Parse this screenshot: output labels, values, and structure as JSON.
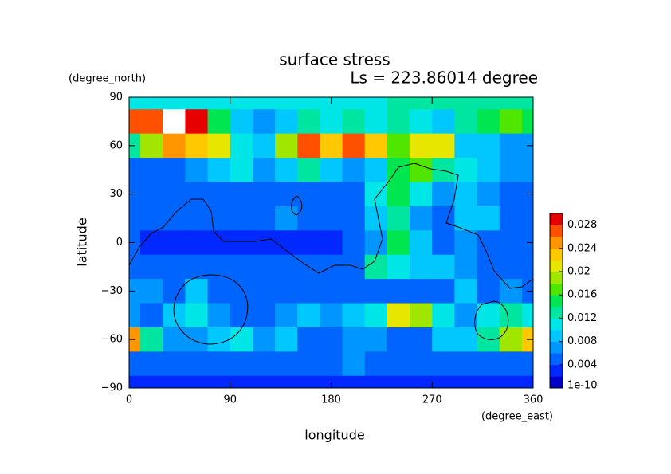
{
  "chart_data": {
    "type": "contour",
    "title": "surface stress",
    "subtitle": "Ls = 223.86014 degree",
    "x_label": "longitude",
    "y_label": "latitude",
    "x_unit": "(degree_east)",
    "y_unit": "(degree_north)",
    "x": [
      0,
      20,
      40,
      60,
      80,
      100,
      120,
      140,
      160,
      180,
      200,
      220,
      240,
      260,
      280,
      300,
      320,
      340,
      360
    ],
    "y": [
      90,
      75,
      60,
      45,
      30,
      15,
      0,
      -15,
      -30,
      -45,
      -60,
      -75,
      -90
    ],
    "z": [
      [
        0.01,
        0.01,
        0.01,
        0.01,
        0.01,
        0.01,
        0.01,
        0.01,
        0.01,
        0.01,
        0.01,
        0.01,
        0.012,
        0.012,
        0.012,
        0.012,
        0.012,
        0.012,
        0.012
      ],
      [
        0.026,
        0.026,
        0.032,
        0.028,
        0.014,
        0.008,
        0.006,
        0.008,
        0.012,
        0.01,
        0.012,
        0.01,
        0.012,
        0.01,
        0.008,
        0.012,
        0.014,
        0.016,
        0.014
      ],
      [
        0.012,
        0.018,
        0.024,
        0.022,
        0.02,
        0.01,
        0.008,
        0.018,
        0.026,
        0.022,
        0.026,
        0.022,
        0.016,
        0.02,
        0.02,
        0.008,
        0.008,
        0.006,
        0.006
      ],
      [
        0.004,
        0.004,
        0.004,
        0.006,
        0.008,
        0.01,
        0.006,
        0.008,
        0.012,
        0.008,
        0.006,
        0.008,
        0.014,
        0.016,
        0.012,
        0.01,
        0.008,
        0.006,
        0.006
      ],
      [
        0.004,
        0.004,
        0.004,
        0.004,
        0.004,
        0.004,
        0.004,
        0.004,
        0.004,
        0.004,
        0.004,
        0.01,
        0.014,
        0.01,
        0.006,
        0.008,
        0.006,
        0.004,
        0.004
      ],
      [
        0.004,
        0.004,
        0.004,
        0.004,
        0.004,
        0.004,
        0.004,
        0.006,
        0.004,
        0.004,
        0.004,
        0.008,
        0.012,
        0.006,
        0.004,
        0.008,
        0.008,
        0.004,
        0.004
      ],
      [
        0.004,
        0.002,
        0.002,
        0.002,
        0.002,
        0.002,
        0.002,
        0.002,
        0.002,
        0.002,
        0.004,
        0.006,
        0.014,
        0.008,
        0.004,
        0.006,
        0.004,
        0.004,
        0.004
      ],
      [
        0.004,
        0.004,
        0.004,
        0.004,
        0.004,
        0.004,
        0.004,
        0.004,
        0.004,
        0.004,
        0.004,
        0.012,
        0.01,
        0.008,
        0.008,
        0.006,
        0.004,
        0.004,
        0.004
      ],
      [
        0.006,
        0.006,
        0.004,
        0.008,
        0.004,
        0.004,
        0.004,
        0.004,
        0.004,
        0.004,
        0.004,
        0.004,
        0.004,
        0.004,
        0.004,
        0.008,
        0.004,
        0.006,
        0.004
      ],
      [
        0.006,
        0.004,
        0.008,
        0.01,
        0.006,
        0.004,
        0.004,
        0.006,
        0.008,
        0.006,
        0.008,
        0.01,
        0.02,
        0.018,
        0.01,
        0.006,
        0.01,
        0.012,
        0.01
      ],
      [
        0.024,
        0.012,
        0.006,
        0.006,
        0.008,
        0.01,
        0.006,
        0.008,
        0.004,
        0.004,
        0.006,
        0.006,
        0.004,
        0.004,
        0.008,
        0.008,
        0.012,
        0.018,
        0.022
      ],
      [
        0.004,
        0.004,
        0.004,
        0.004,
        0.004,
        0.004,
        0.004,
        0.004,
        0.004,
        0.004,
        0.006,
        0.004,
        0.004,
        0.004,
        0.004,
        0.004,
        0.004,
        0.004,
        0.004
      ],
      [
        0.002,
        0.002,
        0.002,
        0.002,
        0.002,
        0.002,
        0.002,
        0.002,
        0.002,
        0.002,
        0.002,
        0.002,
        0.002,
        0.002,
        0.002,
        0.002,
        0.002,
        0.002,
        0.002
      ]
    ],
    "levels": [
      1e-10,
      0.002,
      0.004,
      0.006,
      0.008,
      0.01,
      0.012,
      0.014,
      0.016,
      0.018,
      0.02,
      0.022,
      0.024,
      0.026,
      0.028,
      0.03
    ],
    "level_colors": [
      "#0000c8",
      "#0028ff",
      "#0064ff",
      "#0096ff",
      "#00c8ff",
      "#00e6e6",
      "#00e6a0",
      "#00e650",
      "#50e600",
      "#a0e600",
      "#e6e600",
      "#ffc800",
      "#ff9600",
      "#ff5000",
      "#e60000"
    ],
    "above_color": "#ffffff",
    "xlim": [
      0,
      360
    ],
    "ylim": [
      -90,
      90
    ],
    "xticks": [
      0,
      90,
      180,
      270,
      360
    ],
    "yticks": [
      {
        "value": -90,
        "label": "−90"
      },
      {
        "value": -60,
        "label": "−60"
      },
      {
        "value": -30,
        "label": "−30"
      },
      0,
      30,
      60,
      90
    ],
    "clim": [
      0,
      0.03
    ],
    "cticks": [
      1e-10,
      0.004,
      0.008,
      0.012,
      0.016,
      0.02,
      0.024,
      0.028
    ]
  }
}
